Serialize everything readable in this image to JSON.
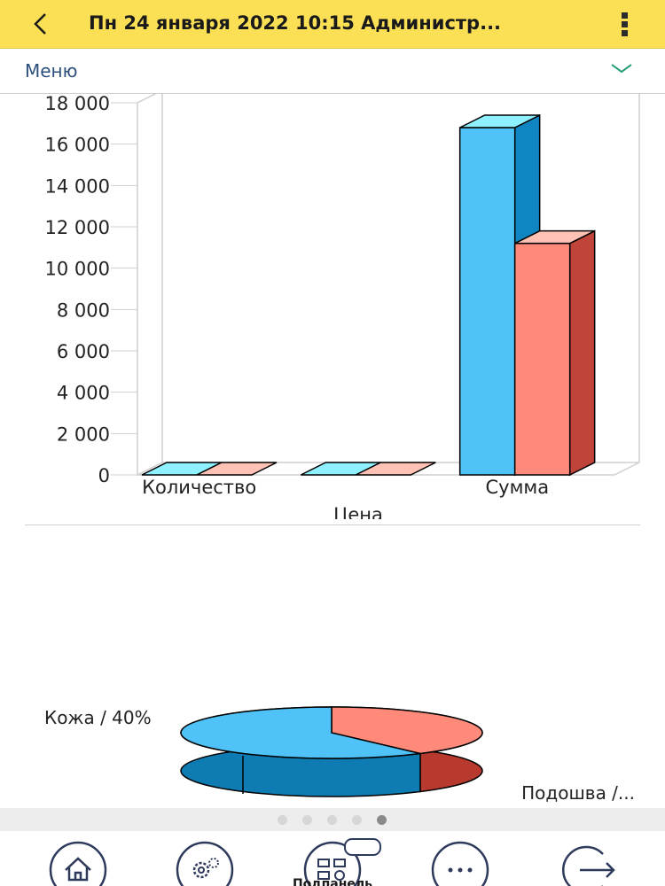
{
  "topbar": {
    "title": "Пн 24 января 2022 10:15 Администр...",
    "back_icon": "chevron-left-icon",
    "menu_icon": "more-vertical-icon"
  },
  "menu": {
    "label": "Меню",
    "chevron_icon": "chevron-down-icon"
  },
  "chart_data": [
    {
      "type": "bar",
      "categories": [
        "Количество",
        "Цена",
        "Сумма"
      ],
      "series": [
        {
          "values": [
            0,
            0,
            16800
          ],
          "color": "#4fc3f7"
        },
        {
          "values": [
            0,
            0,
            11200
          ],
          "color": "#ff8a7a"
        }
      ],
      "ylim": [
        0,
        18000
      ],
      "yticks": [
        "0",
        "2 000",
        "4 000",
        "6 000",
        "8 000",
        "10 000",
        "12 000",
        "14 000",
        "16 000",
        "18 000"
      ],
      "xlabel": "",
      "ylabel": "",
      "title": "",
      "grid": false
    },
    {
      "type": "pie",
      "slices": [
        {
          "label": "Кожа / 40%",
          "value": 40,
          "color": "#ff8a7a"
        },
        {
          "label": "Подошва /...",
          "value": 60,
          "color": "#4fc3f7"
        }
      ],
      "title": ""
    }
  ],
  "pager": {
    "count": 5,
    "active": 4
  },
  "bottom_nav": {
    "items": [
      {
        "icon": "home-icon"
      },
      {
        "icon": "settings-gears-icon"
      },
      {
        "icon": "subsystems-panel-icon",
        "label": "Подпанель"
      },
      {
        "icon": "more-horizontal-icon"
      },
      {
        "icon": "exit-arrow-icon"
      }
    ]
  },
  "colors": {
    "topbar": "#fbe055",
    "accent": "#2d4f7c",
    "series_blue": "#4fc3f7",
    "series_red": "#ff8a7a"
  }
}
